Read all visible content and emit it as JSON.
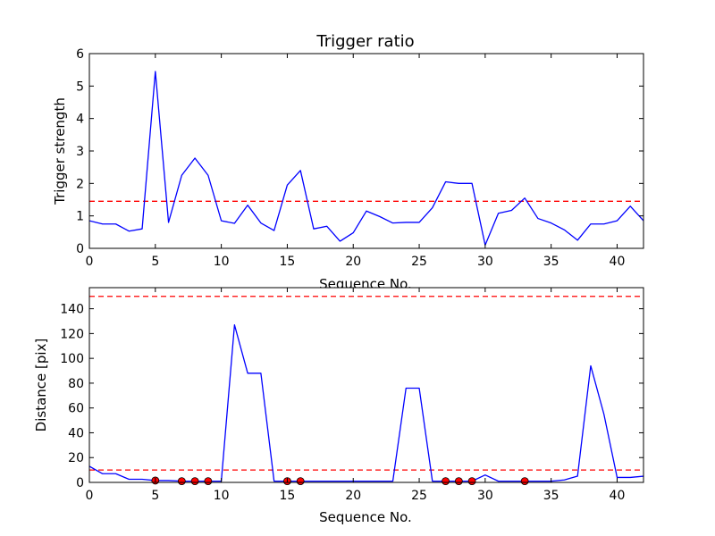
{
  "chart_data": [
    {
      "type": "line",
      "title": "Trigger ratio",
      "xlabel": "Sequence No.",
      "ylabel": "Trigger strength",
      "xlim": [
        0,
        42
      ],
      "ylim": [
        0,
        6
      ],
      "xticks": [
        0,
        5,
        10,
        15,
        20,
        25,
        30,
        35,
        40
      ],
      "yticks": [
        0,
        1,
        2,
        3,
        4,
        5,
        6
      ],
      "grid": false,
      "series": [
        {
          "color": "#0000ff",
          "x": [
            0,
            1,
            2,
            3,
            4,
            5,
            6,
            7,
            8,
            9,
            10,
            11,
            12,
            13,
            14,
            15,
            16,
            17,
            18,
            19,
            20,
            21,
            22,
            23,
            24,
            25,
            26,
            27,
            28,
            29,
            30,
            31,
            32,
            33,
            34,
            35,
            36,
            37,
            38,
            39,
            40,
            41,
            42
          ],
          "values": [
            0.85,
            0.75,
            0.75,
            0.53,
            0.6,
            5.45,
            0.8,
            2.25,
            2.78,
            2.25,
            0.85,
            0.77,
            1.33,
            0.78,
            0.55,
            1.95,
            2.4,
            0.6,
            0.68,
            0.22,
            0.48,
            1.15,
            0.98,
            0.78,
            0.8,
            0.8,
            1.25,
            2.05,
            2.0,
            2.0,
            0.1,
            1.08,
            1.17,
            1.55,
            0.92,
            0.78,
            0.57,
            0.25,
            0.75,
            0.75,
            0.85,
            1.3,
            0.85
          ]
        }
      ],
      "reference_lines": [
        {
          "y": 1.45,
          "color": "#ff0000",
          "style": "dashed"
        }
      ]
    },
    {
      "type": "line",
      "title": "",
      "xlabel": "Sequence No.",
      "ylabel": "Distance [pix]",
      "xlim": [
        0,
        42
      ],
      "ylim": [
        0,
        157
      ],
      "xticks": [
        0,
        5,
        10,
        15,
        20,
        25,
        30,
        35,
        40
      ],
      "yticks": [
        0,
        20,
        40,
        60,
        80,
        100,
        120,
        140
      ],
      "grid": false,
      "series": [
        {
          "color": "#0000ff",
          "x": [
            0,
            1,
            2,
            3,
            4,
            5,
            6,
            7,
            8,
            9,
            10,
            11,
            12,
            13,
            14,
            15,
            16,
            17,
            18,
            19,
            20,
            21,
            22,
            23,
            24,
            25,
            26,
            27,
            28,
            29,
            30,
            31,
            32,
            33,
            34,
            35,
            36,
            37,
            38,
            39,
            40,
            41,
            42
          ],
          "values": [
            13,
            7,
            7,
            2.5,
            2.5,
            1.5,
            1.5,
            1,
            1,
            1,
            1,
            127,
            88,
            88,
            1,
            1,
            1,
            1,
            1,
            1,
            1,
            1,
            1,
            1,
            76,
            76,
            1,
            1,
            1,
            1,
            6,
            1,
            1,
            1,
            1,
            1,
            2,
            5,
            94,
            55,
            4,
            4,
            5
          ]
        }
      ],
      "markers": {
        "color": "#ff0000",
        "x": [
          5,
          7,
          8,
          9,
          15,
          16,
          27,
          28,
          29,
          33
        ],
        "y": [
          1.5,
          1,
          1,
          1,
          1,
          1,
          1,
          1,
          1,
          1
        ]
      },
      "reference_lines": [
        {
          "y": 150,
          "color": "#ff0000",
          "style": "dashed"
        },
        {
          "y": 10,
          "color": "#ff0000",
          "style": "dashed"
        }
      ]
    }
  ]
}
